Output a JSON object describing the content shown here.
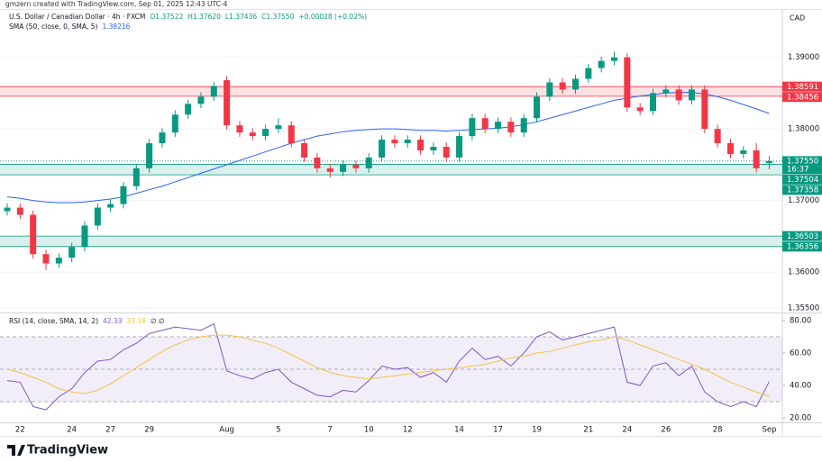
{
  "watermark": "gmzern created with TradingView.com, Sep 01, 2025 12:43 UTC-4",
  "brand": "TradingView",
  "chart_data": [
    {
      "type": "candlestick",
      "title": "U.S. Dollar / Canadian Dollar · 4h · FXCM",
      "ohlc": [
        "O1.37522",
        "H1.37620",
        "L1.37436",
        "C1.37550"
      ],
      "change": "+0.00028 (+0.02%)",
      "currency": "CAD",
      "up_color": "#089981",
      "down_color": "#f23645",
      "categories": [
        null,
        "22",
        null,
        null,
        null,
        "24",
        null,
        null,
        "27",
        null,
        null,
        "29",
        null,
        null,
        null,
        null,
        null,
        "Aug",
        null,
        null,
        null,
        "5",
        null,
        null,
        null,
        "7",
        null,
        null,
        "10",
        null,
        null,
        "12",
        null,
        null,
        null,
        "14",
        null,
        null,
        "17",
        null,
        null,
        "19",
        null,
        null,
        null,
        "21",
        null,
        null,
        "24",
        null,
        null,
        "26",
        null,
        null,
        null,
        "28",
        null,
        null,
        null,
        "Sep"
      ],
      "open": [
        1.3685,
        1.369,
        1.368,
        1.3625,
        1.3612,
        1.362,
        1.3635,
        1.3665,
        1.369,
        1.3695,
        1.372,
        1.3745,
        1.378,
        1.3795,
        1.382,
        1.3835,
        1.3845,
        1.3868,
        1.3805,
        1.3795,
        1.379,
        1.38,
        1.3805,
        1.378,
        1.376,
        1.3745,
        1.374,
        1.375,
        1.3745,
        1.376,
        1.3785,
        1.378,
        1.3785,
        1.377,
        1.3775,
        1.376,
        1.379,
        1.3815,
        1.38,
        1.381,
        1.3795,
        1.3815,
        1.3845,
        1.3865,
        1.3855,
        1.387,
        1.3885,
        1.3895,
        1.39,
        1.383,
        1.3825,
        1.385,
        1.3855,
        1.384,
        1.3855,
        1.38,
        1.378,
        1.3765,
        1.377,
        1.37522
      ],
      "high": [
        1.3696,
        1.3696,
        1.3686,
        1.3631,
        1.3626,
        1.3641,
        1.3671,
        1.3696,
        1.3701,
        1.3726,
        1.3751,
        1.3786,
        1.3801,
        1.3826,
        1.3841,
        1.3851,
        1.3866,
        1.3874,
        1.3811,
        1.3801,
        1.3806,
        1.3815,
        1.3811,
        1.3786,
        1.3766,
        1.3751,
        1.3756,
        1.3756,
        1.3766,
        1.3791,
        1.3791,
        1.3791,
        1.3791,
        1.3781,
        1.3781,
        1.3796,
        1.3821,
        1.3821,
        1.3816,
        1.3816,
        1.3821,
        1.3851,
        1.3871,
        1.3871,
        1.3876,
        1.3891,
        1.3901,
        1.3908,
        1.3906,
        1.3836,
        1.3856,
        1.3861,
        1.3861,
        1.3861,
        1.3861,
        1.3806,
        1.3786,
        1.3776,
        1.378,
        1.3762
      ],
      "low": [
        1.3679,
        1.3674,
        1.3619,
        1.3603,
        1.3606,
        1.3614,
        1.3629,
        1.3659,
        1.3684,
        1.3689,
        1.3714,
        1.3739,
        1.3774,
        1.3789,
        1.3814,
        1.3829,
        1.3839,
        1.3799,
        1.3789,
        1.3784,
        1.3784,
        1.3794,
        1.3774,
        1.3754,
        1.3739,
        1.3732,
        1.3734,
        1.3739,
        1.3739,
        1.3754,
        1.3774,
        1.3774,
        1.3764,
        1.3764,
        1.3754,
        1.3754,
        1.3784,
        1.3794,
        1.3794,
        1.3789,
        1.3789,
        1.3809,
        1.3839,
        1.3849,
        1.3849,
        1.3864,
        1.3879,
        1.3889,
        1.3824,
        1.3819,
        1.3819,
        1.3844,
        1.3834,
        1.3834,
        1.3794,
        1.3774,
        1.3759,
        1.3759,
        1.3739,
        1.37436
      ],
      "close": [
        1.369,
        1.368,
        1.3625,
        1.3612,
        1.362,
        1.3635,
        1.3665,
        1.369,
        1.3695,
        1.372,
        1.3745,
        1.378,
        1.3795,
        1.382,
        1.3835,
        1.3845,
        1.386,
        1.3805,
        1.3795,
        1.379,
        1.38,
        1.3805,
        1.378,
        1.376,
        1.3745,
        1.374,
        1.375,
        1.3745,
        1.376,
        1.3785,
        1.378,
        1.3785,
        1.377,
        1.3775,
        1.376,
        1.379,
        1.3815,
        1.38,
        1.381,
        1.3795,
        1.3815,
        1.3845,
        1.3865,
        1.3855,
        1.387,
        1.3885,
        1.3895,
        1.39,
        1.383,
        1.3825,
        1.385,
        1.3855,
        1.384,
        1.3855,
        1.38,
        1.378,
        1.3765,
        1.377,
        1.3745,
        1.3755
      ],
      "series": [
        {
          "name": "SMA (50, close, 0, SMA, 5)",
          "color": "#2962ff",
          "values": [
            1.3705,
            1.3703,
            1.37,
            1.3698,
            1.3697,
            1.3697,
            1.3698,
            1.37,
            1.3702,
            1.3705,
            1.371,
            1.3715,
            1.372,
            1.3726,
            1.3732,
            1.3738,
            1.3744,
            1.375,
            1.3756,
            1.3762,
            1.3768,
            1.3774,
            1.378,
            1.3785,
            1.379,
            1.3793,
            1.3796,
            1.3798,
            1.3799,
            1.38,
            1.38,
            1.3799,
            1.3798,
            1.3798,
            1.3797,
            1.3798,
            1.3799,
            1.38,
            1.3801,
            1.3803,
            1.3806,
            1.381,
            1.3815,
            1.382,
            1.3825,
            1.383,
            1.3835,
            1.384,
            1.3843,
            1.3846,
            1.3848,
            1.385,
            1.3851,
            1.3851,
            1.3849,
            1.3845,
            1.384,
            1.3834,
            1.3828,
            1.38216
          ]
        }
      ],
      "zones": [
        {
          "top": 1.38591,
          "bottom": 1.38456,
          "color": "#f23645"
        },
        {
          "top": 1.37504,
          "bottom": 1.37358,
          "color": "#089981"
        },
        {
          "top": 1.36503,
          "bottom": 1.36356,
          "color": "#089981"
        }
      ],
      "last_price": {
        "value": 1.3755,
        "label": "1.37550"
      },
      "countdown": "16:37",
      "ylim": [
        1.3546,
        1.3965
      ],
      "yticks": [
        {
          "value": 1.355,
          "label": "1.35500"
        },
        {
          "value": 1.36,
          "label": "1.36000"
        },
        {
          "value": 1.37,
          "label": "1.37000"
        },
        {
          "value": 1.38,
          "label": "1.38000"
        },
        {
          "value": 1.39,
          "label": "1.39000"
        }
      ],
      "grid": true
    },
    {
      "type": "line",
      "title": "RSI (14, close, SMA, 14, 2)",
      "extra": "∅ ∅",
      "series": [
        {
          "name": "RSI",
          "color": "#7e57c2",
          "values": [
            43,
            42,
            27,
            25,
            33,
            38,
            48,
            55,
            56,
            62,
            66,
            72,
            74,
            76,
            75,
            74,
            78,
            49,
            46,
            44,
            48,
            50,
            42,
            38,
            34,
            33,
            37,
            36,
            43,
            52,
            50,
            51,
            45,
            48,
            42,
            55,
            63,
            56,
            58,
            52,
            60,
            70,
            73,
            68,
            70,
            72,
            74,
            76,
            42,
            40,
            52,
            54,
            46,
            52,
            36,
            30,
            27,
            30,
            27,
            42.33
          ]
        },
        {
          "name": "RSI-based MA",
          "color": "#f5c242",
          "values": [
            50,
            48,
            45,
            42,
            38,
            36,
            35,
            37,
            41,
            46,
            51,
            56,
            61,
            65,
            68,
            70,
            71,
            71,
            70,
            68,
            66,
            63,
            59,
            55,
            51,
            48,
            46,
            45,
            44,
            45,
            46,
            47,
            48,
            49,
            50,
            51,
            52,
            53,
            55,
            57,
            58,
            60,
            61,
            63,
            65,
            67,
            68,
            70,
            68,
            65,
            62,
            59,
            56,
            53,
            50,
            46,
            42,
            39,
            36,
            33.16
          ]
        }
      ],
      "bands": [
        30,
        50,
        70
      ],
      "ylim": [
        16.7,
        83.3
      ],
      "yticks": [
        {
          "value": 20,
          "label": "20.00"
        },
        {
          "value": 40,
          "label": "40.00"
        },
        {
          "value": 60,
          "label": "60.00"
        },
        {
          "value": 80,
          "label": "80.00"
        }
      ]
    }
  ]
}
